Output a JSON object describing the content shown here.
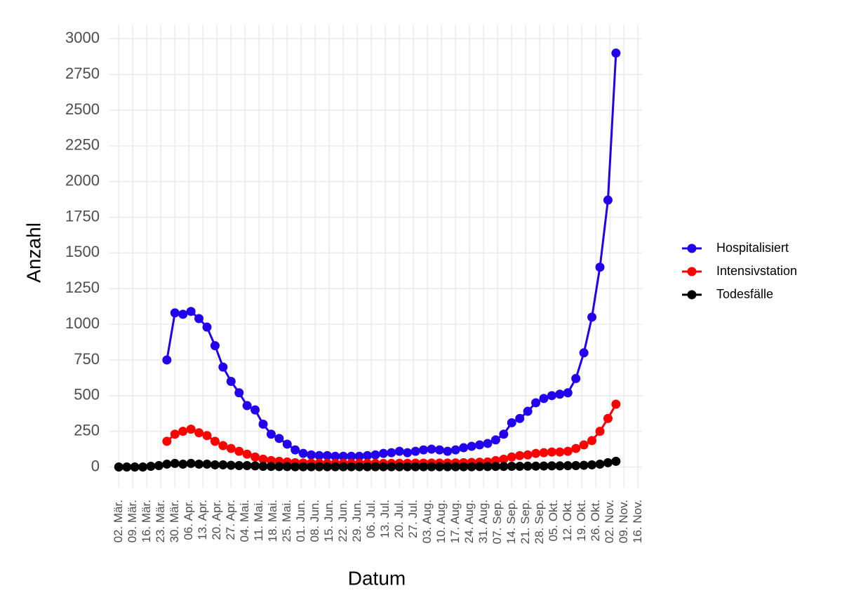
{
  "chart_data": {
    "type": "line",
    "xlabel": "Datum",
    "ylabel": "Anzahl",
    "x": [
      0,
      4,
      8,
      12,
      16,
      20,
      24,
      28,
      32,
      36,
      40,
      44,
      48,
      52,
      56,
      60,
      64,
      68,
      72,
      76,
      80,
      84,
      88,
      92,
      96,
      100,
      104,
      108,
      112,
      116,
      120,
      124,
      128,
      132,
      136,
      140,
      144,
      148,
      152,
      156,
      160,
      164,
      168,
      172,
      176,
      180,
      184,
      188,
      192,
      196,
      200,
      204,
      208,
      212,
      216,
      220,
      224,
      228,
      232,
      236,
      240,
      244,
      248
    ],
    "series": [
      {
        "name": "Hospitalisiert",
        "color": "#2200ee",
        "values": [
          null,
          null,
          null,
          null,
          null,
          null,
          750,
          1080,
          1070,
          1090,
          1040,
          980,
          850,
          700,
          600,
          520,
          430,
          400,
          300,
          230,
          200,
          160,
          120,
          95,
          85,
          80,
          80,
          75,
          75,
          75,
          75,
          80,
          85,
          95,
          100,
          110,
          100,
          110,
          120,
          125,
          120,
          110,
          120,
          135,
          145,
          155,
          165,
          190,
          230,
          310,
          340,
          390,
          450,
          480,
          500,
          510,
          520,
          620,
          800,
          1050,
          1400,
          1870,
          2900
        ]
      },
      {
        "name": "Intensivstation",
        "color": "#ff0000",
        "values": [
          null,
          null,
          null,
          null,
          null,
          null,
          180,
          230,
          250,
          265,
          240,
          220,
          180,
          150,
          130,
          110,
          90,
          70,
          55,
          45,
          40,
          35,
          30,
          28,
          27,
          26,
          25,
          25,
          25,
          25,
          25,
          25,
          25,
          25,
          25,
          26,
          26,
          27,
          27,
          28,
          28,
          28,
          29,
          30,
          32,
          34,
          35,
          45,
          55,
          70,
          80,
          85,
          95,
          100,
          105,
          105,
          110,
          130,
          155,
          185,
          250,
          340,
          440
        ]
      },
      {
        "name": "Todesfälle",
        "color": "#000000",
        "values": [
          0,
          0,
          0,
          0,
          5,
          10,
          20,
          25,
          20,
          25,
          20,
          20,
          15,
          15,
          12,
          10,
          10,
          8,
          5,
          4,
          3,
          3,
          2,
          2,
          2,
          2,
          2,
          2,
          2,
          2,
          2,
          2,
          2,
          2,
          2,
          2,
          2,
          2,
          2,
          2,
          2,
          2,
          2,
          2,
          2,
          3,
          3,
          4,
          4,
          5,
          5,
          6,
          6,
          7,
          8,
          8,
          9,
          10,
          12,
          15,
          20,
          30,
          40
        ]
      }
    ],
    "xlim": [
      -5,
      261
    ],
    "ylim": [
      -145,
      3100
    ],
    "xticks": [
      {
        "value": 0,
        "label": "02. Mär."
      },
      {
        "value": 7,
        "label": "09. Mär."
      },
      {
        "value": 14,
        "label": "16. Mär."
      },
      {
        "value": 21,
        "label": "23. Mär."
      },
      {
        "value": 28,
        "label": "30. Mär."
      },
      {
        "value": 35,
        "label": "06. Apr."
      },
      {
        "value": 42,
        "label": "13. Apr."
      },
      {
        "value": 49,
        "label": "20. Apr."
      },
      {
        "value": 56,
        "label": "27. Apr."
      },
      {
        "value": 63,
        "label": "04. Mai."
      },
      {
        "value": 70,
        "label": "11. Mai."
      },
      {
        "value": 77,
        "label": "18. Mai."
      },
      {
        "value": 84,
        "label": "25. Mai."
      },
      {
        "value": 91,
        "label": "01. Jun."
      },
      {
        "value": 98,
        "label": "08. Jun."
      },
      {
        "value": 105,
        "label": "15. Jun."
      },
      {
        "value": 112,
        "label": "22. Jun."
      },
      {
        "value": 119,
        "label": "29. Jun."
      },
      {
        "value": 126,
        "label": "06. Jul."
      },
      {
        "value": 133,
        "label": "13. Jul."
      },
      {
        "value": 140,
        "label": "20. Jul."
      },
      {
        "value": 147,
        "label": "27. Jul."
      },
      {
        "value": 154,
        "label": "03. Aug."
      },
      {
        "value": 161,
        "label": "10. Aug."
      },
      {
        "value": 168,
        "label": "17. Aug."
      },
      {
        "value": 175,
        "label": "24. Aug."
      },
      {
        "value": 182,
        "label": "31. Aug."
      },
      {
        "value": 189,
        "label": "07. Sep."
      },
      {
        "value": 196,
        "label": "14. Sep."
      },
      {
        "value": 203,
        "label": "21. Sep."
      },
      {
        "value": 210,
        "label": "28. Sep."
      },
      {
        "value": 217,
        "label": "05. Okt."
      },
      {
        "value": 224,
        "label": "12. Okt."
      },
      {
        "value": 231,
        "label": "19. Okt."
      },
      {
        "value": 238,
        "label": "26. Okt."
      },
      {
        "value": 245,
        "label": "02. Nov."
      },
      {
        "value": 252,
        "label": "09. Nov."
      },
      {
        "value": 259,
        "label": "16. Nov."
      }
    ],
    "yticks": [
      0,
      250,
      500,
      750,
      1000,
      1250,
      1500,
      1750,
      2000,
      2250,
      2500,
      2750,
      3000
    ],
    "grid": true
  }
}
